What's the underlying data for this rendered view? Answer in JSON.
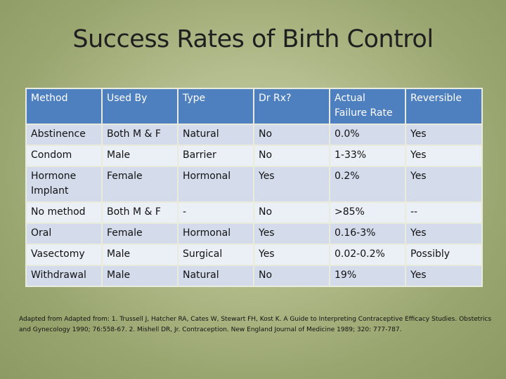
{
  "title": "Success Rates of Birth Control",
  "table": {
    "headers": [
      "Method",
      "Used By",
      "Type",
      "Dr Rx?",
      "Actual Failure Rate",
      "Reversible"
    ],
    "rows": [
      [
        "Abstinence",
        "Both M & F",
        "Natural",
        "No",
        "0.0%",
        "Yes"
      ],
      [
        "Condom",
        "Male",
        "Barrier",
        "No",
        "1-33%",
        "Yes"
      ],
      [
        "Hormone Implant",
        "Female",
        "Hormonal",
        "Yes",
        "0.2%",
        "Yes"
      ],
      [
        "No method",
        "Both M & F",
        "-",
        "No",
        ">85%",
        "--"
      ],
      [
        "Oral",
        "Female",
        "Hormonal",
        "Yes",
        "0.16-3%",
        "Yes"
      ],
      [
        "Vasectomy",
        "Male",
        "Surgical",
        "Yes",
        "0.02-0.2%",
        "Possibly"
      ],
      [
        "Withdrawal",
        "Male",
        "Natural",
        "No",
        "19%",
        "Yes"
      ]
    ]
  },
  "footnote": "Adapted from Adapted from: 1. Trussell J, Hatcher RA, Cates W, Stewart FH, Kost K. A Guide to Interpreting Contraceptive Efficacy Studies. Obstetrics and Gynecology 1990; 76:558-67. 2. Mishell DR, Jr. Contraception. New England Journal of Medicine 1989; 320: 777-787."
}
